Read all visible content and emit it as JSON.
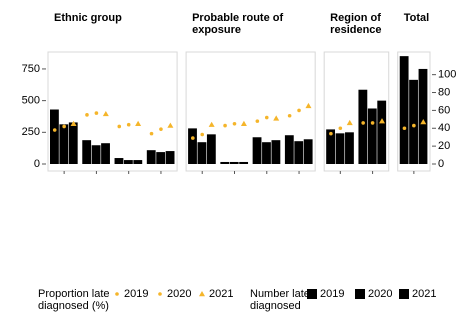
{
  "chart_data": {
    "type": "bar",
    "ylim": [
      0,
      860
    ],
    "yticks": [
      0,
      250,
      500,
      750
    ],
    "y2lim": [
      0,
      122
    ],
    "y2ticks": [
      0,
      20,
      40,
      60,
      80,
      100
    ],
    "point_legend_title": "Proportion late diagnosed (%)",
    "bar_legend_title": "Number late diagnosed",
    "series": [
      {
        "name": "2019",
        "color": "#f5b52a",
        "axis": "y2",
        "marker": "circle"
      },
      {
        "name": "2020",
        "color": "#f5b52a",
        "axis": "y2",
        "marker": "circle"
      },
      {
        "name": "2021",
        "color": "#f5b52a",
        "axis": "y2",
        "marker": "triangle"
      },
      {
        "name": "2019",
        "color": "#000000"
      },
      {
        "name": "2020",
        "color": "#000000"
      },
      {
        "name": "2021",
        "color": "#000000"
      }
    ],
    "panels": [
      {
        "title": "Ethnic group",
        "categories": [
          null,
          null,
          null,
          null
        ],
        "values": [
          [
            38,
            55,
            42,
            34
          ],
          [
            42,
            57,
            44,
            39
          ],
          [
            45,
            56,
            45,
            43
          ],
          [
            430,
            188,
            47,
            109
          ],
          [
            313,
            148,
            31,
            94
          ],
          [
            328,
            164,
            31,
            102
          ]
        ]
      },
      {
        "title": "Probable route of exposure",
        "categories": [
          null,
          null,
          null,
          null
        ],
        "values": [
          [
            29,
            43,
            48,
            54
          ],
          [
            33,
            45,
            52,
            60
          ],
          [
            44,
            45,
            51,
            65
          ],
          [
            281,
            16,
            211,
            227
          ],
          [
            172,
            16,
            172,
            180
          ],
          [
            234,
            16,
            188,
            195
          ]
        ]
      },
      {
        "title": "Region of residence",
        "categories": [
          null,
          null
        ],
        "values": [
          [
            34,
            46
          ],
          [
            40,
            46
          ],
          [
            46,
            48
          ],
          [
            273,
            586
          ],
          [
            242,
            438
          ],
          [
            250,
            500
          ]
        ]
      },
      {
        "title": "Total",
        "categories": [
          null
        ],
        "values": [
          [
            40
          ],
          [
            43
          ],
          [
            47
          ],
          [
            851
          ],
          [
            664
          ],
          [
            750
          ]
        ]
      }
    ]
  }
}
